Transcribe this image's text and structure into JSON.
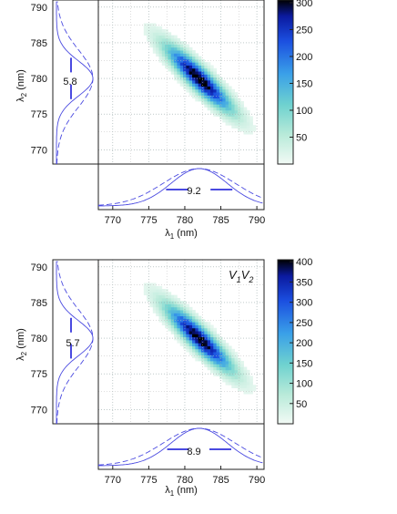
{
  "chart_data": [
    {
      "type": "heatmap",
      "xlabel": "λ1 (nm)",
      "ylabel": "λ2 (nm)",
      "xlim": [
        768,
        791
      ],
      "ylim": [
        768,
        791
      ],
      "x_ticks": [
        770,
        775,
        780,
        785,
        790
      ],
      "y_ticks": [
        770,
        775,
        780,
        785,
        790
      ],
      "grid": true,
      "label": "",
      "colorbar": {
        "ticks": [
          50,
          100,
          150,
          200,
          250,
          300
        ],
        "max": 305
      },
      "peak": {
        "x": 782,
        "y": 780
      },
      "marginal_x": {
        "fwhm": "9.2",
        "center": 782
      },
      "marginal_y": {
        "fwhm": "5.8",
        "center": 780
      }
    },
    {
      "type": "heatmap",
      "xlabel": "λ1 (nm)",
      "ylabel": "λ2 (nm)",
      "xlim": [
        768,
        791
      ],
      "ylim": [
        768,
        791
      ],
      "x_ticks": [
        770,
        775,
        780,
        785,
        790
      ],
      "y_ticks": [
        770,
        775,
        780,
        785,
        790
      ],
      "grid": true,
      "label_main": "V",
      "label_sub1": "1",
      "label_mid": "V",
      "label_sub2": "2",
      "colorbar": {
        "ticks": [
          50,
          100,
          150,
          200,
          250,
          300,
          350,
          400
        ],
        "max": 405
      },
      "peak": {
        "x": 782,
        "y": 780
      },
      "marginal_x": {
        "fwhm": "8.9",
        "center": 782
      },
      "marginal_y": {
        "fwhm": "5.7",
        "center": 780
      }
    }
  ]
}
